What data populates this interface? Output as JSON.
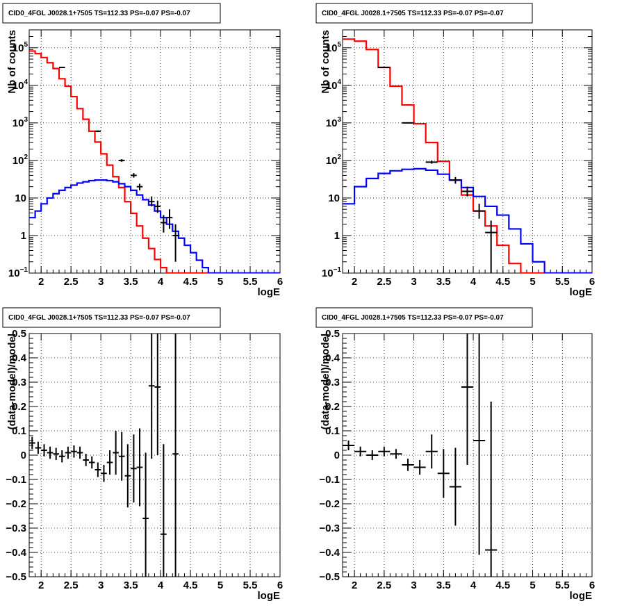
{
  "chart_data": [
    {
      "type": "histogram",
      "title": "CID0_4FGL J0028.1+7505 TS=112.33 PS=-0.07 PS=-0.07",
      "xlabel": "logE",
      "ylabel": "Nb of counts",
      "xlim": [
        1.8,
        6.0
      ],
      "ylim": [
        0.1,
        300000
      ],
      "yscale": "log",
      "grid": true,
      "x_ticks": [
        "2",
        "2.5",
        "3",
        "3.5",
        "4",
        "4.5",
        "5",
        "5.5",
        "6"
      ],
      "y_ticks": [
        {
          "base": "10",
          "exp": "5"
        },
        {
          "base": "10",
          "exp": "4"
        },
        {
          "base": "10",
          "exp": "3"
        },
        {
          "base": "10",
          "exp": "2"
        },
        {
          "base": "10",
          "exp": ""
        },
        {
          "base": "1",
          "exp": ""
        },
        {
          "base": "10",
          "exp": "−1"
        }
      ],
      "bin_width": 0.1,
      "bin_start": 1.8,
      "series": [
        {
          "color": "#ff0000",
          "role": "total-model",
          "values": [
            82000,
            70000,
            55000,
            40000,
            28000,
            15000,
            9500,
            5000,
            2400,
            1250,
            600,
            310,
            150,
            75,
            37,
            19,
            8,
            3.9,
            1.8,
            0.85,
            0.45,
            0.23,
            0.14,
            0.1,
            0.1,
            0.1,
            0.1,
            0.1,
            0.1,
            0.1,
            0.1,
            0.1,
            0.1,
            0.1,
            0.1,
            0.1,
            0.1,
            0.1,
            0.1,
            0.1,
            0.1,
            0.1
          ]
        },
        {
          "color": "#0000ff",
          "role": "source-model",
          "values": [
            3.0,
            4.5,
            7.0,
            10,
            13,
            16,
            19,
            22,
            25,
            27,
            29,
            30,
            30,
            29,
            27,
            24,
            20,
            16,
            12,
            9,
            6.5,
            4.5,
            3.0,
            2.0,
            1.3,
            0.85,
            0.55,
            0.35,
            0.22,
            0.14,
            0.1,
            0.1,
            0.1,
            0.1,
            0.1,
            0.1,
            0.1,
            0.1,
            0.1,
            0.1,
            0.1,
            0.1
          ]
        },
        {
          "color": "#000000",
          "role": "data",
          "points": [
            {
              "x": 2.35,
              "y": 30000,
              "lo": 29500,
              "hi": 30500
            },
            {
              "x": 2.95,
              "y": 600,
              "lo": 570,
              "hi": 630
            },
            {
              "x": 3.35,
              "y": 100,
              "lo": 92,
              "hi": 108
            },
            {
              "x": 3.55,
              "y": 40,
              "lo": 35,
              "hi": 46
            },
            {
              "x": 3.65,
              "y": 20,
              "lo": 16,
              "hi": 24
            },
            {
              "x": 3.85,
              "y": 8,
              "lo": 6,
              "hi": 11
            },
            {
              "x": 3.95,
              "y": 6,
              "lo": 4,
              "hi": 8.5
            },
            {
              "x": 4.05,
              "y": 2.2,
              "lo": 1.2,
              "hi": 3.5
            },
            {
              "x": 4.15,
              "y": 3,
              "lo": 1.5,
              "hi": 5
            },
            {
              "x": 4.25,
              "y": 1,
              "lo": 0.2,
              "hi": 2
            }
          ]
        }
      ]
    },
    {
      "type": "histogram",
      "title": "CID0_4FGL J0028.1+7505 TS=112.33 PS=-0.07 PS=-0.07",
      "xlabel": "logE",
      "ylabel": "Nb of counts",
      "xlim": [
        1.8,
        6.0
      ],
      "ylim": [
        0.1,
        300000
      ],
      "yscale": "log",
      "grid": true,
      "x_ticks": [
        "2",
        "2.5",
        "3",
        "3.5",
        "4",
        "4.5",
        "5",
        "5.5",
        "6"
      ],
      "y_ticks": [
        {
          "base": "10",
          "exp": "5"
        },
        {
          "base": "10",
          "exp": "4"
        },
        {
          "base": "10",
          "exp": "3"
        },
        {
          "base": "10",
          "exp": "2"
        },
        {
          "base": "10",
          "exp": ""
        },
        {
          "base": "1",
          "exp": ""
        },
        {
          "base": "10",
          "exp": "−1"
        }
      ],
      "bin_width": 0.2,
      "bin_start": 1.8,
      "series": [
        {
          "color": "#ff0000",
          "role": "total-model",
          "values": [
            170000,
            150000,
            90000,
            30000,
            9500,
            3000,
            950,
            300,
            95,
            30,
            12,
            4.5,
            1.8,
            0.55,
            0.18,
            0.1,
            0.1,
            0.1,
            0.1,
            0.1,
            0.1
          ]
        },
        {
          "color": "#0000ff",
          "role": "source-model",
          "values": [
            7,
            20,
            33,
            45,
            53,
            58,
            60,
            55,
            43,
            30,
            19,
            11,
            6,
            3.5,
            1.5,
            0.6,
            0.2,
            0.1,
            0.1,
            0.1,
            0.1
          ]
        },
        {
          "color": "#000000",
          "role": "data",
          "points": [
            {
              "x": 2.5,
              "y": 30000,
              "lo": 29500,
              "hi": 30500
            },
            {
              "x": 2.9,
              "y": 1000,
              "lo": 960,
              "hi": 1040
            },
            {
              "x": 3.3,
              "y": 90,
              "lo": 82,
              "hi": 98
            },
            {
              "x": 3.7,
              "y": 30,
              "lo": 24,
              "hi": 36
            },
            {
              "x": 3.9,
              "y": 15,
              "lo": 11,
              "hi": 20
            },
            {
              "x": 4.1,
              "y": 4.5,
              "lo": 2.8,
              "hi": 7
            },
            {
              "x": 4.3,
              "y": 1.2,
              "lo": 0.1,
              "hi": 2.5
            }
          ]
        }
      ]
    },
    {
      "type": "errorbar",
      "title": "CID0_4FGL J0028.1+7505 TS=112.33 PS=-0.07 PS=-0.07",
      "xlabel": "logE",
      "ylabel": "(data-model)/model",
      "xlim": [
        1.8,
        6.0
      ],
      "ylim": [
        -0.5,
        0.5
      ],
      "grid": true,
      "x_ticks": [
        "2",
        "2.5",
        "3",
        "3.5",
        "4",
        "4.5",
        "5",
        "5.5",
        "6"
      ],
      "y_ticks": [
        "0.5",
        "0.4",
        "0.3",
        "0.2",
        "0.1",
        "0",
        "−0.1",
        "−0.2",
        "−0.3",
        "−0.4",
        "−0.5"
      ],
      "half_width": 0.05,
      "points": [
        {
          "x": 1.85,
          "y": 0.05,
          "e": 0.025
        },
        {
          "x": 1.95,
          "y": 0.03,
          "e": 0.025
        },
        {
          "x": 2.05,
          "y": 0.02,
          "e": 0.025
        },
        {
          "x": 2.15,
          "y": 0.01,
          "e": 0.025
        },
        {
          "x": 2.25,
          "y": 0.005,
          "e": 0.025
        },
        {
          "x": 2.35,
          "y": -0.005,
          "e": 0.025
        },
        {
          "x": 2.45,
          "y": 0.01,
          "e": 0.025
        },
        {
          "x": 2.55,
          "y": 0.015,
          "e": 0.025
        },
        {
          "x": 2.65,
          "y": 0.01,
          "e": 0.025
        },
        {
          "x": 2.75,
          "y": -0.02,
          "e": 0.025
        },
        {
          "x": 2.85,
          "y": -0.03,
          "e": 0.025
        },
        {
          "x": 2.95,
          "y": -0.06,
          "e": 0.03
        },
        {
          "x": 3.05,
          "y": -0.075,
          "e": 0.035
        },
        {
          "x": 3.15,
          "y": -0.03,
          "e": 0.05
        },
        {
          "x": 3.25,
          "y": 0.01,
          "e": 0.09
        },
        {
          "x": 3.35,
          "y": -0.005,
          "e": 0.1
        },
        {
          "x": 3.45,
          "y": -0.085,
          "e": 0.13
        },
        {
          "x": 3.55,
          "y": -0.055,
          "e": 0.14
        },
        {
          "x": 3.65,
          "y": -0.05,
          "e": 0.16
        },
        {
          "x": 3.75,
          "y": -0.26,
          "e": 0.27
        },
        {
          "x": 3.85,
          "y": 0.285,
          "e": 0.3
        },
        {
          "x": 3.95,
          "y": 0.28,
          "e": 0.28
        },
        {
          "x": 4.05,
          "y": -0.325,
          "e": 0.37
        },
        {
          "x": 4.25,
          "y": 0.005,
          "e": 0.6
        }
      ]
    },
    {
      "type": "errorbar",
      "title": "CID0_4FGL J0028.1+7505 TS=112.33 PS=-0.07 PS=-0.07",
      "xlabel": "logE",
      "ylabel": "(data-model)/model",
      "xlim": [
        1.8,
        6.0
      ],
      "ylim": [
        -0.5,
        0.5
      ],
      "grid": true,
      "x_ticks": [
        "2",
        "2.5",
        "3",
        "3.5",
        "4",
        "4.5",
        "5",
        "5.5",
        "6"
      ],
      "y_ticks": [
        "0.5",
        "0.4",
        "0.3",
        "0.2",
        "0.1",
        "0",
        "−0.1",
        "−0.2",
        "−0.3",
        "−0.4",
        "−0.5"
      ],
      "half_width": 0.1,
      "points": [
        {
          "x": 1.9,
          "y": 0.04,
          "e": 0.02
        },
        {
          "x": 2.1,
          "y": 0.015,
          "e": 0.02
        },
        {
          "x": 2.3,
          "y": 0.0,
          "e": 0.02
        },
        {
          "x": 2.5,
          "y": 0.015,
          "e": 0.02
        },
        {
          "x": 2.7,
          "y": 0.005,
          "e": 0.02
        },
        {
          "x": 2.9,
          "y": -0.04,
          "e": 0.025
        },
        {
          "x": 3.1,
          "y": -0.05,
          "e": 0.03
        },
        {
          "x": 3.3,
          "y": 0.015,
          "e": 0.07
        },
        {
          "x": 3.5,
          "y": -0.075,
          "e": 0.1
        },
        {
          "x": 3.7,
          "y": -0.13,
          "e": 0.16
        },
        {
          "x": 3.9,
          "y": 0.28,
          "e": 0.32
        },
        {
          "x": 4.1,
          "y": 0.06,
          "e": 0.47
        },
        {
          "x": 4.3,
          "y": -0.39,
          "e": 0.61
        }
      ]
    }
  ]
}
